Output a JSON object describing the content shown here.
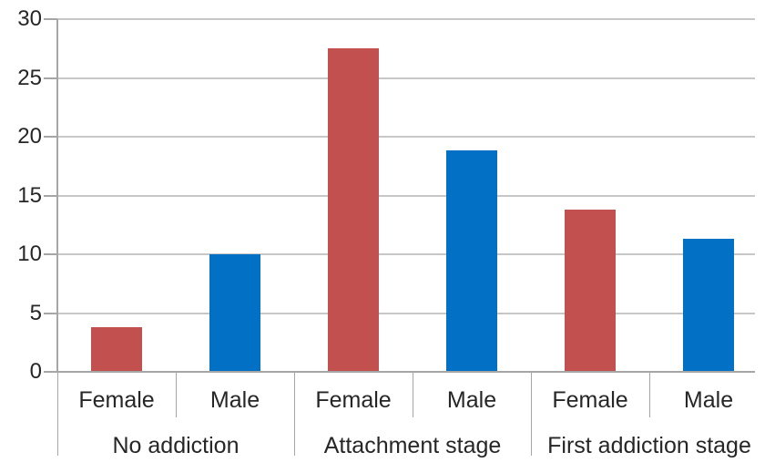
{
  "chart_data": {
    "type": "bar",
    "title": "",
    "categories": [
      "No addiction",
      "Attachment stage",
      "First addiction stage"
    ],
    "series": [
      {
        "name": "Female",
        "color": "#c1504e",
        "values": [
          3.8,
          27.5,
          13.8
        ]
      },
      {
        "name": "Male",
        "color": "#0271c5",
        "values": [
          10,
          18.8,
          11.3
        ]
      }
    ],
    "xlabel": "",
    "ylabel": "",
    "ylim": [
      0,
      30
    ],
    "y_ticks": [
      0,
      5,
      10,
      15,
      20,
      25,
      30
    ],
    "grid": true,
    "legend": "none",
    "axis_note": "two-level category axis: Female/Male sub-label under each bar, stage group label below",
    "style": {
      "gridline_color": "#c7c7c7",
      "axis_color": "#a6a6a6",
      "text_color": "#262626",
      "background_color": "#ffffff"
    }
  }
}
